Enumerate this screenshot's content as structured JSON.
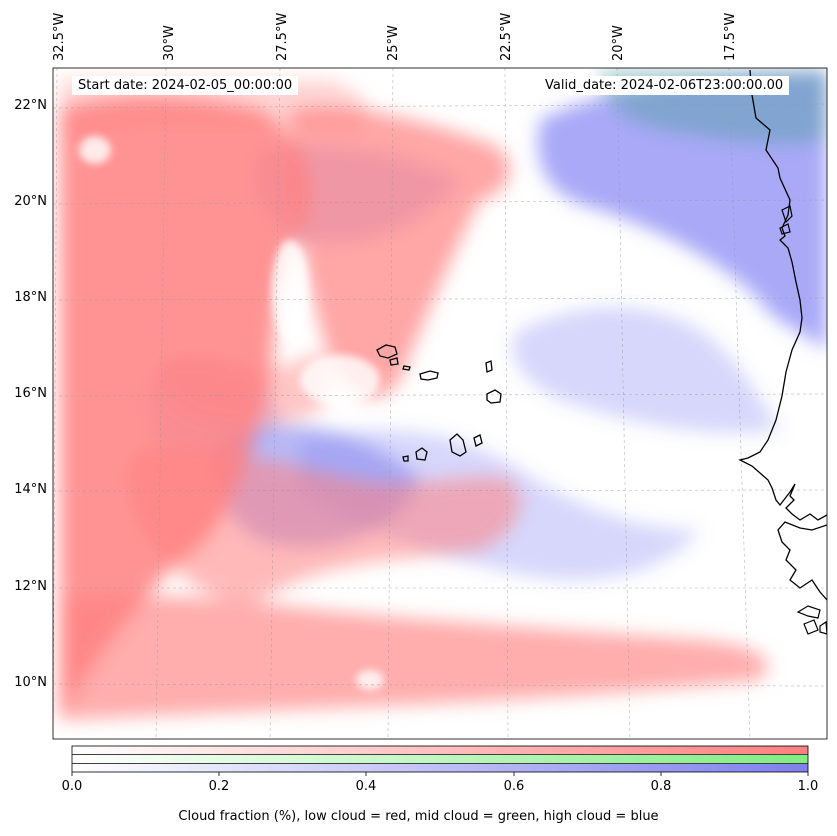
{
  "map": {
    "start_date": "Start date: 2024-02-05_00:00:00",
    "valid_date": "Valid_date: 2024-02-06T23:00:00.00",
    "lon_labels": [
      "32.5°W",
      "30°W",
      "27.5°W",
      "25°W",
      "22.5°W",
      "20°W",
      "17.5°W"
    ],
    "lat_labels": [
      "22°N",
      "20°N",
      "18°N",
      "16°N",
      "14°N",
      "12°N",
      "10°N"
    ],
    "colors": {
      "low": "#ff7f7f",
      "mid": "#80ee80",
      "high": "#7f7ff0",
      "coast": "#000000"
    }
  },
  "colorbar": {
    "ticks": [
      "0.0",
      "0.2",
      "0.4",
      "0.6",
      "0.8",
      "1.0"
    ],
    "caption": "Cloud fraction (%), low cloud = red, mid cloud = green, high cloud = blue"
  }
}
